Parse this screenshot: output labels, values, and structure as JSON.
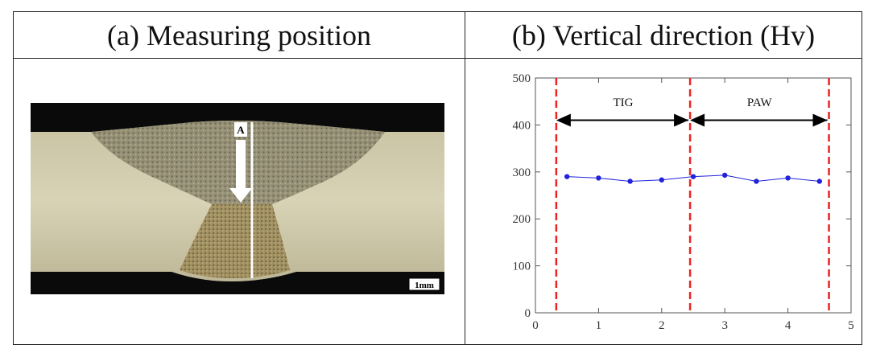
{
  "panels": {
    "a": {
      "title": "(a) Measuring position",
      "marker_label": "A",
      "scale_label": "1mm"
    },
    "b": {
      "title": "(b) Vertical direction (Hv)"
    }
  },
  "colors": {
    "series": "#2222dd",
    "dashed": "#ee2222",
    "arrow": "#000000"
  },
  "chart_data": {
    "type": "line",
    "title": "(b) Vertical direction (Hv)",
    "xlabel": "",
    "ylabel": "",
    "xlim": [
      0,
      5
    ],
    "ylim": [
      0,
      500
    ],
    "xticks": [
      0,
      1,
      2,
      3,
      4,
      5
    ],
    "yticks": [
      0,
      100,
      200,
      300,
      400,
      500
    ],
    "grid": false,
    "series": [
      {
        "x": [
          0.5,
          1.0,
          1.5,
          2.0,
          2.5,
          3.0,
          3.5,
          4.0,
          4.5
        ],
        "values": [
          290,
          287,
          280,
          283,
          290,
          293,
          280,
          287,
          280
        ]
      }
    ],
    "vertical_lines": [
      0.33,
      2.45,
      4.65
    ],
    "annotations": [
      {
        "text": "TIG",
        "x": 1.39,
        "y": 440,
        "arrow_from": 0.33,
        "arrow_to": 2.45,
        "arrow_y": 410
      },
      {
        "text": "PAW",
        "x": 3.55,
        "y": 440,
        "arrow_from": 2.45,
        "arrow_to": 4.65,
        "arrow_y": 410
      }
    ]
  }
}
